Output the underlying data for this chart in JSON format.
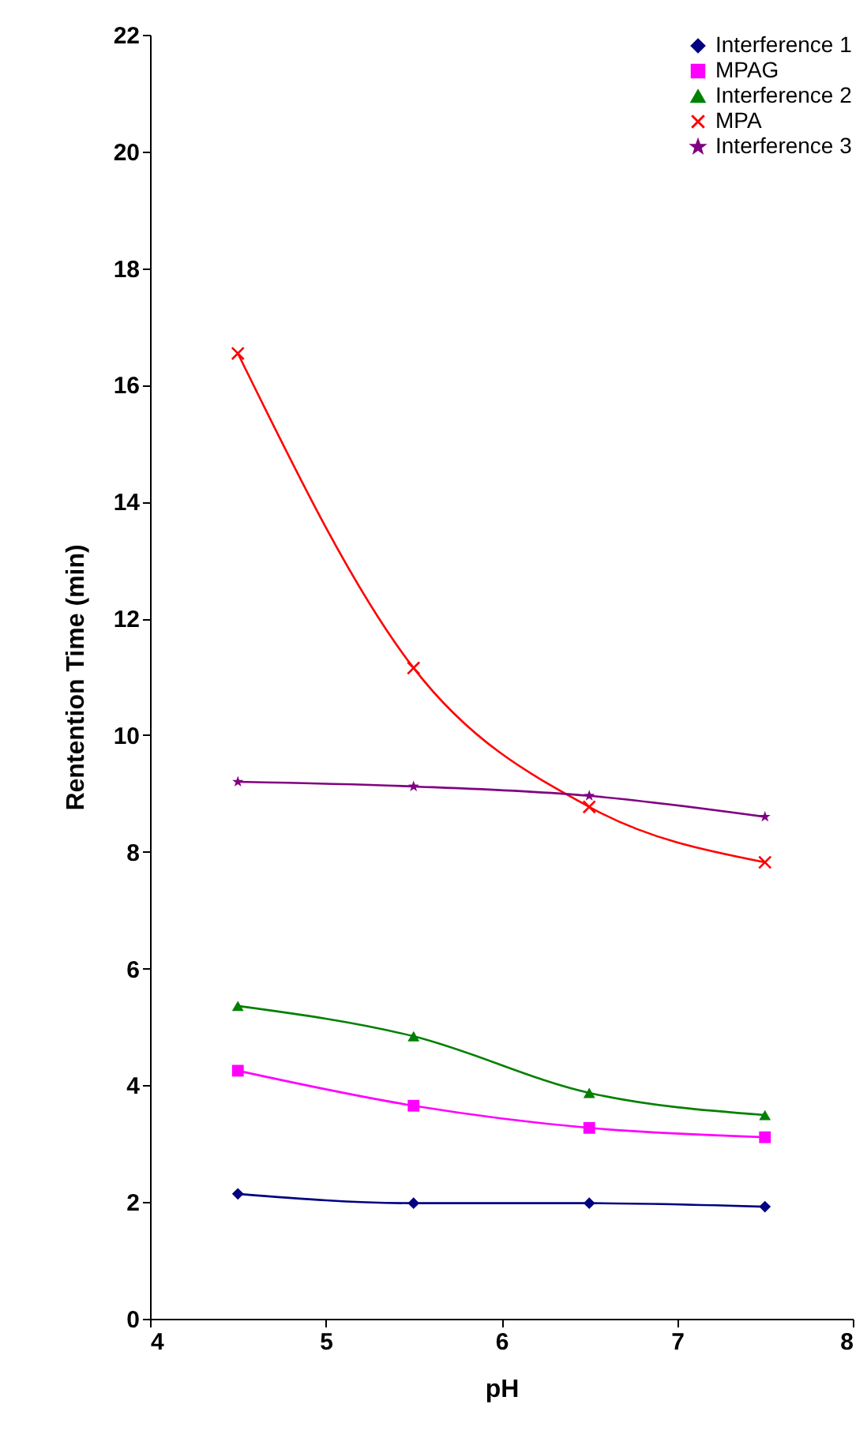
{
  "chart_data": {
    "type": "line",
    "xlabel": "pH",
    "ylabel": "Rentention Time (min)",
    "x": [
      4.5,
      5.5,
      6.5,
      7.5
    ],
    "series": [
      {
        "name": "Interference 1",
        "color": "#000080",
        "marker": "diamond",
        "values": [
          2.14,
          1.98,
          1.98,
          1.92
        ]
      },
      {
        "name": "MPAG",
        "color": "#ff00ff",
        "marker": "square",
        "values": [
          4.25,
          3.65,
          3.27,
          3.11
        ]
      },
      {
        "name": "Interference 2",
        "color": "#008000",
        "marker": "triangle",
        "values": [
          5.36,
          4.84,
          3.87,
          3.49
        ]
      },
      {
        "name": "MPA",
        "color": "#ff0000",
        "marker": "cross",
        "values": [
          16.54,
          11.15,
          8.77,
          7.82
        ]
      },
      {
        "name": "Interference 3",
        "color": "#800080",
        "marker": "star",
        "values": [
          9.2,
          9.12,
          8.96,
          8.6
        ]
      }
    ],
    "xlim": [
      4,
      8
    ],
    "xticks": [
      4,
      5,
      6,
      7,
      8
    ],
    "ylim": [
      0,
      22
    ],
    "yticks": [
      0,
      2,
      4,
      6,
      8,
      10,
      12,
      14,
      16,
      18,
      20,
      22
    ],
    "grid": false,
    "legend": "top right"
  }
}
